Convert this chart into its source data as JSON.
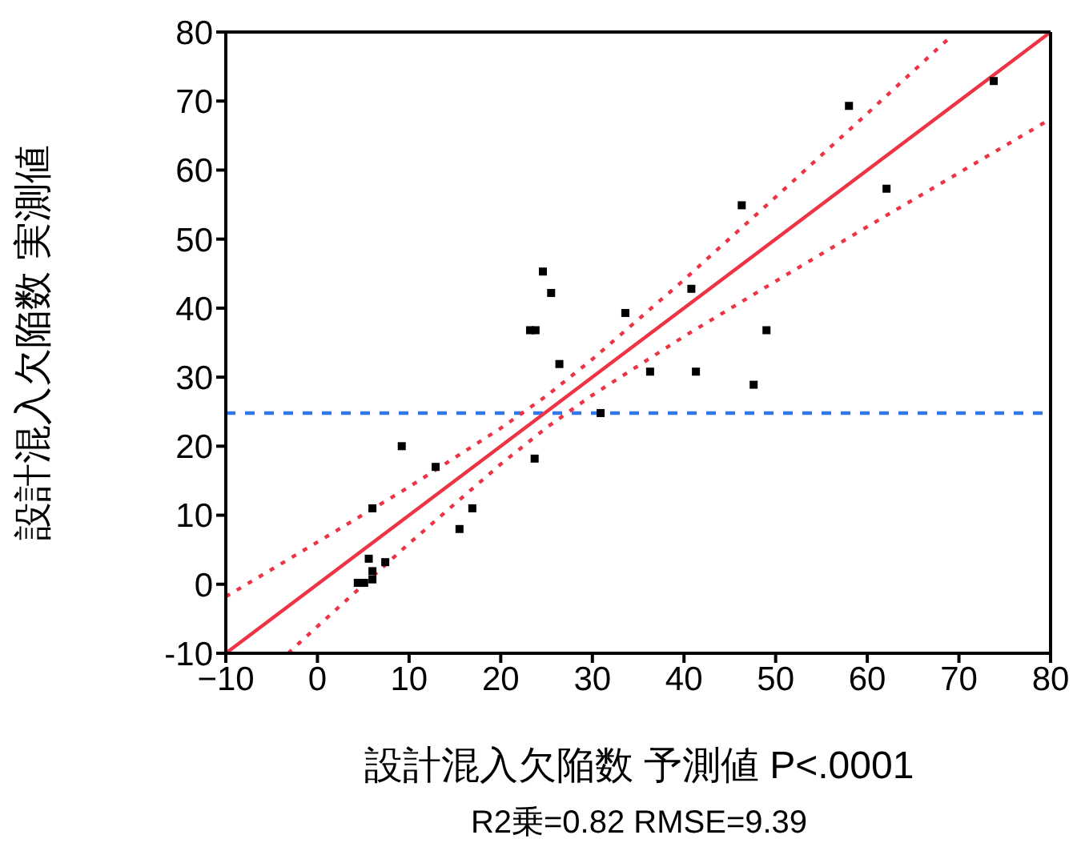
{
  "chart_data": {
    "type": "scatter",
    "xlabel": "設計混入欠陥数 予測値 P<.0001",
    "ylabel": "設計混入欠陥数 実測値",
    "annotations": [
      "R2乗=0.82 RMSE=9.39"
    ],
    "xlim": [
      -10,
      80
    ],
    "xticks": [
      {
        "value": -10,
        "label": "−10"
      },
      0,
      10,
      20,
      30,
      40,
      50,
      60,
      70,
      80
    ],
    "ylim": [
      -10,
      80
    ],
    "yticks": [
      -10,
      0,
      10,
      20,
      30,
      40,
      50,
      60,
      70,
      80
    ],
    "legend": false,
    "series": [
      {
        "color": "#000000",
        "marker": "square",
        "x": [
          73.8,
          58.0,
          62.1,
          46.3,
          40.8,
          33.6,
          36.3,
          41.3,
          49.0,
          47.6,
          24.6,
          25.5,
          23.2,
          23.8,
          26.4,
          30.9,
          23.7,
          9.2,
          12.9,
          6.0,
          16.9,
          15.5,
          5.6,
          7.4,
          6.0,
          6.0,
          4.4,
          5.1
        ],
        "values": [
          72.9,
          69.3,
          57.3,
          54.9,
          42.8,
          39.3,
          30.8,
          30.8,
          36.8,
          28.9,
          45.3,
          42.2,
          36.8,
          36.8,
          31.9,
          24.8,
          18.2,
          20.0,
          17.0,
          11.0,
          11.0,
          8.0,
          3.7,
          3.2,
          1.9,
          0.7,
          0.2,
          0.2
        ]
      },
      {
        "type": "line",
        "color": "#ee3344",
        "marker": "none",
        "line_style": "solid",
        "x": [
          -10,
          80
        ],
        "values": [
          -10,
          80
        ]
      },
      {
        "type": "line",
        "color": "#ee3344",
        "marker": "none",
        "line_style": "dotted",
        "x": [
          -10,
          0,
          10,
          20,
          25,
          30,
          40,
          50,
          60,
          69
        ],
        "values": [
          -1.8,
          6.1,
          14.1,
          22.6,
          27.3,
          32.6,
          44.1,
          56.1,
          68.2,
          79.2
        ]
      },
      {
        "type": "line",
        "color": "#ee3344",
        "marker": "none",
        "line_style": "dotted",
        "x": [
          -3.2,
          0,
          10,
          20,
          25,
          30,
          40,
          50,
          60,
          70,
          80
        ],
        "values": [
          -10,
          -6.1,
          5.9,
          17.4,
          22.7,
          27.4,
          35.9,
          43.9,
          51.8,
          59.6,
          67.4
        ]
      }
    ],
    "ref_lines": [
      {
        "axis": "y",
        "value": 24.8,
        "color": "#3377ee",
        "line_style": "dashed"
      }
    ]
  }
}
